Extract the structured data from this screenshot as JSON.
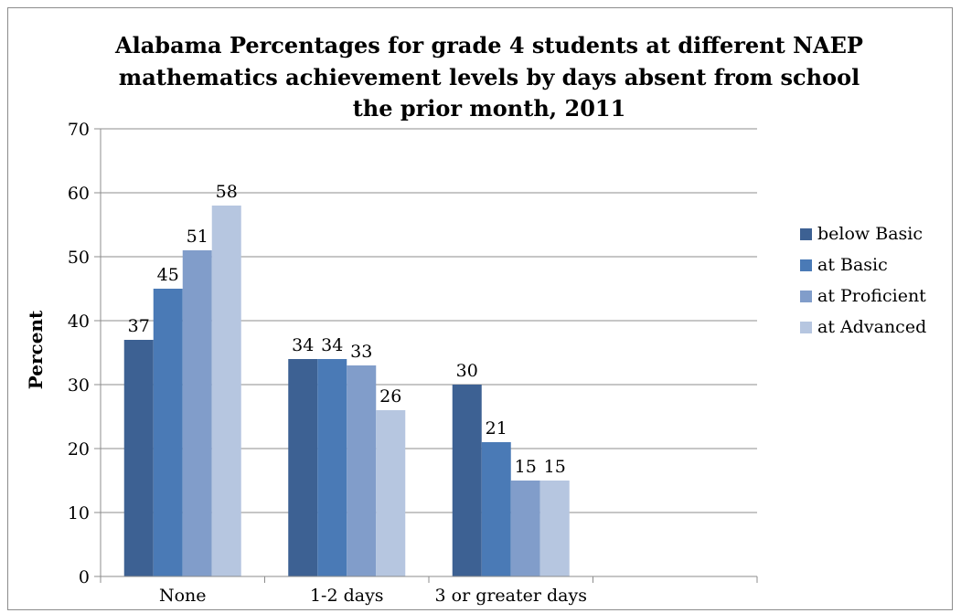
{
  "chart_data": {
    "type": "bar",
    "title_lines": [
      "Alabama Percentages for grade 4 students at different NAEP",
      "mathematics achievement levels by days absent from school",
      "the prior month, 2011"
    ],
    "xlabel": "",
    "ylabel": "Percent",
    "ylim": [
      0,
      70
    ],
    "yticks": [
      0,
      10,
      20,
      30,
      40,
      50,
      60,
      70
    ],
    "grid": true,
    "legend_position": "right",
    "categories": [
      "None",
      "1-2 days",
      "3 or greater days"
    ],
    "series": [
      {
        "name": "below Basic",
        "color": "#3d6193",
        "values": [
          37,
          34,
          30
        ]
      },
      {
        "name": "at Basic",
        "color": "#4a7ab6",
        "values": [
          45,
          34,
          21
        ]
      },
      {
        "name": "at Proficient",
        "color": "#819dca",
        "values": [
          51,
          33,
          15
        ]
      },
      {
        "name": "at Advanced",
        "color": "#b6c6e0",
        "values": [
          58,
          26,
          15
        ]
      }
    ]
  }
}
